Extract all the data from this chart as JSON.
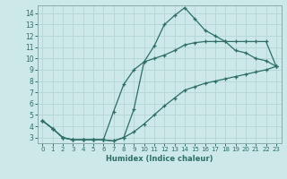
{
  "xlabel": "Humidex (Indice chaleur)",
  "bg_color": "#cce8e8",
  "grid_color": "#b8d8d8",
  "line_color": "#2d6e65",
  "spine_color": "#8aabaa",
  "xlim": [
    -0.5,
    23.5
  ],
  "ylim": [
    2.5,
    14.7
  ],
  "xticks": [
    0,
    1,
    2,
    3,
    4,
    5,
    6,
    7,
    8,
    9,
    10,
    11,
    12,
    13,
    14,
    15,
    16,
    17,
    18,
    19,
    20,
    21,
    22,
    23
  ],
  "yticks": [
    3,
    4,
    5,
    6,
    7,
    8,
    9,
    10,
    11,
    12,
    13,
    14
  ],
  "line1_x": [
    0,
    1,
    2,
    3,
    4,
    5,
    6,
    7,
    8,
    9,
    10,
    11,
    12,
    13,
    14,
    15,
    16,
    17,
    18,
    19,
    20,
    21,
    22,
    23
  ],
  "line1_y": [
    4.5,
    3.8,
    3.0,
    2.8,
    2.8,
    2.8,
    2.8,
    2.7,
    3.0,
    5.5,
    9.7,
    11.1,
    13.0,
    13.8,
    14.5,
    13.5,
    12.5,
    12.0,
    11.5,
    10.7,
    10.5,
    10.0,
    9.8,
    9.3
  ],
  "line2_x": [
    0,
    1,
    2,
    3,
    4,
    5,
    6,
    7,
    8,
    9,
    10,
    11,
    12,
    13,
    14,
    15,
    16,
    17,
    18,
    19,
    20,
    21,
    22,
    23
  ],
  "line2_y": [
    4.5,
    3.8,
    3.0,
    2.8,
    2.8,
    2.8,
    2.8,
    5.3,
    7.7,
    9.0,
    9.7,
    10.0,
    10.3,
    10.7,
    11.2,
    11.4,
    11.5,
    11.5,
    11.5,
    11.5,
    11.5,
    11.5,
    11.5,
    9.3
  ],
  "line3_x": [
    0,
    1,
    2,
    3,
    4,
    5,
    6,
    7,
    8,
    9,
    10,
    11,
    12,
    13,
    14,
    15,
    16,
    17,
    18,
    19,
    20,
    21,
    22,
    23
  ],
  "line3_y": [
    4.5,
    3.8,
    3.0,
    2.8,
    2.8,
    2.8,
    2.8,
    2.7,
    3.0,
    3.5,
    4.2,
    5.0,
    5.8,
    6.5,
    7.2,
    7.5,
    7.8,
    8.0,
    8.2,
    8.4,
    8.6,
    8.8,
    9.0,
    9.3
  ],
  "marker_size": 3.5,
  "linewidth": 0.9
}
